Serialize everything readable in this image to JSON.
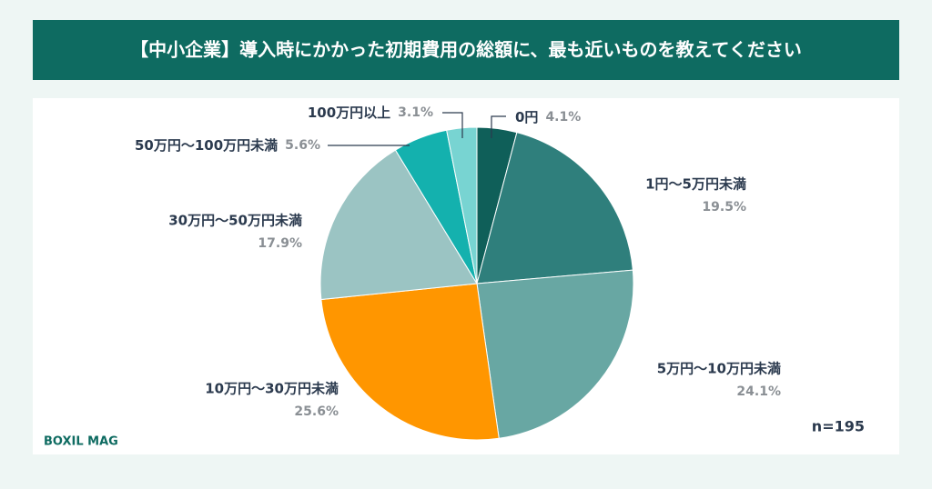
{
  "chart_data": {
    "type": "pie",
    "title": "【中小企業】導入時にかかった初期費用の総額に、最も近いものを教えてください",
    "categories": [
      "0円",
      "1円〜5万円未満",
      "5万円〜10万円未満",
      "10万円〜30万円未満",
      "30万円〜50万円未満",
      "50万円〜100万円未満",
      "100万円以上"
    ],
    "values": [
      4.1,
      19.5,
      24.1,
      25.6,
      17.9,
      5.6,
      3.1
    ],
    "value_labels": [
      "4.1%",
      "19.5%",
      "24.1%",
      "25.6%",
      "17.9%",
      "5.6%",
      "3.1%"
    ],
    "colors": [
      "#0f5f59",
      "#2f7f7c",
      "#68a7a3",
      "#ff9600",
      "#9bc4c3",
      "#14b1ae",
      "#78d4d2"
    ],
    "annotation": "n=195",
    "logo": "BOXIL MAG"
  }
}
